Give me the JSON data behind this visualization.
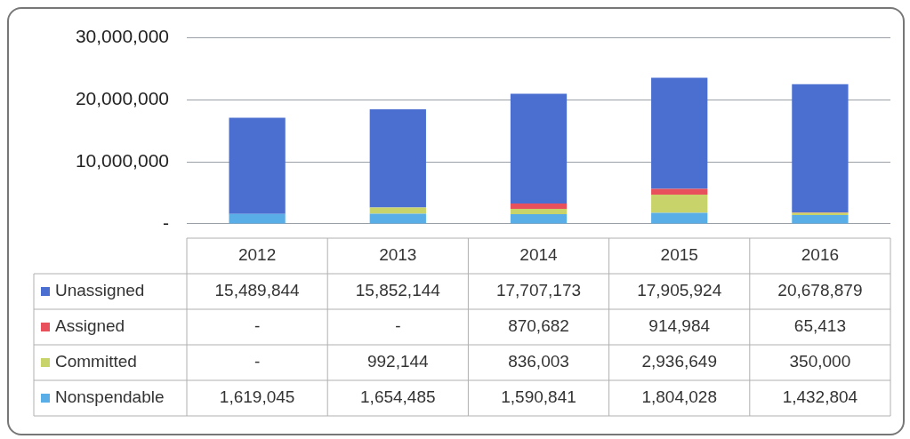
{
  "chart_data": {
    "type": "bar",
    "stacked": true,
    "categories": [
      "2012",
      "2013",
      "2014",
      "2015",
      "2016"
    ],
    "series": [
      {
        "name": "Nonspendable",
        "color": "#5aaee8",
        "values": [
          1619045,
          1654485,
          1590841,
          1804028,
          1432804
        ],
        "value_labels": [
          "1,619,045",
          "1,654,485",
          "1,590,841",
          "1,804,028",
          "1,432,804"
        ]
      },
      {
        "name": "Committed",
        "color": "#c8d46a",
        "values": [
          null,
          992144,
          836003,
          2936649,
          350000
        ],
        "value_labels": [
          "-",
          "992,144",
          "836,003",
          "2,936,649",
          "350,000"
        ]
      },
      {
        "name": "Assigned",
        "color": "#e8505b",
        "values": [
          null,
          null,
          870682,
          914984,
          65413
        ],
        "value_labels": [
          "-",
          "-",
          "870,682",
          "914,984",
          "65,413"
        ]
      },
      {
        "name": "Unassigned",
        "color": "#4a6fd0",
        "values": [
          15489844,
          15852144,
          17707173,
          17905924,
          20678879
        ],
        "value_labels": [
          "15,489,844",
          "15,852,144",
          "17,707,173",
          "17,905,924",
          "20,678,879"
        ]
      }
    ],
    "ylim": [
      0,
      30000000
    ],
    "yticks": [
      {
        "value": 0,
        "label": "-"
      },
      {
        "value": 10000000,
        "label": "10,000,000"
      },
      {
        "value": 20000000,
        "label": "20,000,000"
      },
      {
        "value": 30000000,
        "label": "30,000,000"
      }
    ],
    "grid": "y",
    "legend": "bottom left"
  }
}
